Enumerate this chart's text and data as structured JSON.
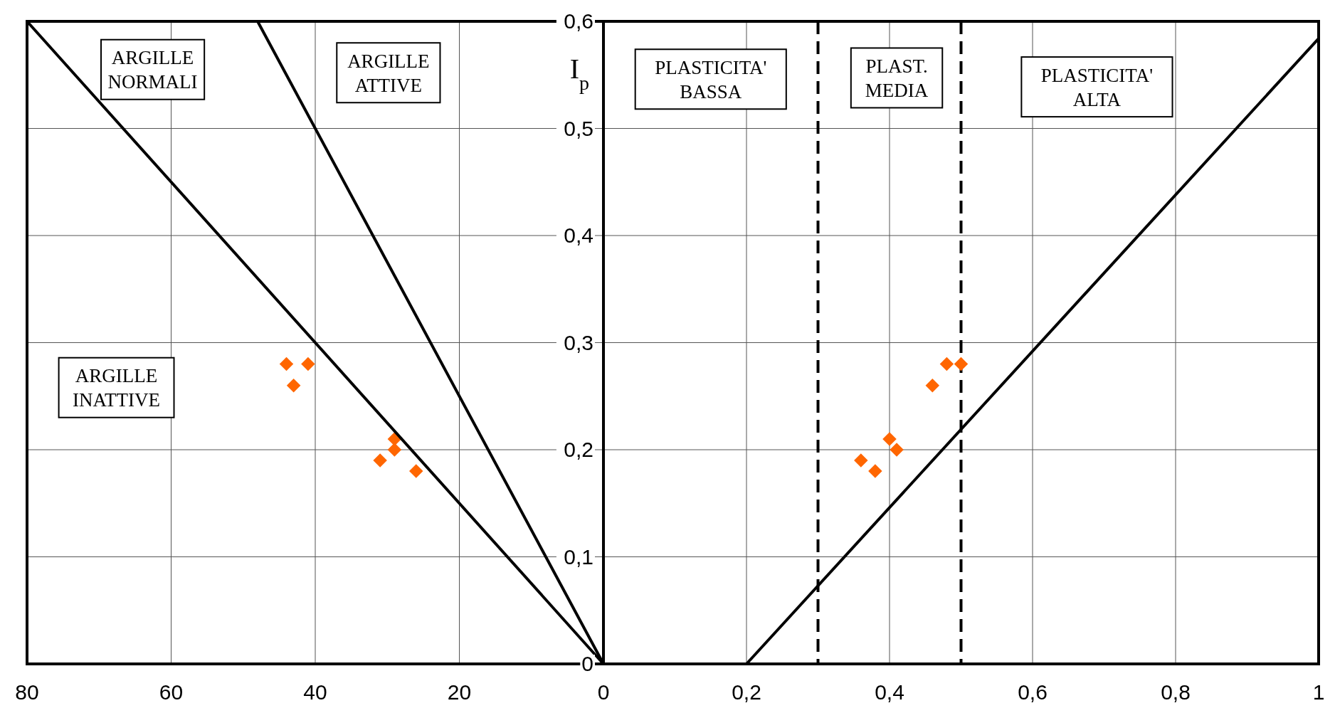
{
  "chart_data": [
    {
      "type": "scatter",
      "xlim": [
        80,
        0
      ],
      "ylim": [
        0,
        0.6
      ],
      "xticks": [
        80,
        60,
        40,
        20,
        {
          "value": 0,
          "label": null
        }
      ],
      "yticks": [
        0,
        0.1,
        0.2,
        0.3,
        0.4,
        0.5,
        0.6
      ],
      "grid": true,
      "tick_labels": "x",
      "marker": "diamond",
      "series": [
        {
          "color": "#ff6600",
          "x": [
            44,
            41,
            43,
            29,
            29,
            31,
            26
          ],
          "values": [
            0.28,
            0.28,
            0.26,
            0.21,
            0.2,
            0.19,
            0.18
          ]
        },
        {
          "type": "line",
          "marker": "none",
          "color": "#000000",
          "x": [
            0,
            80
          ],
          "values": [
            0,
            0.6
          ]
        },
        {
          "type": "line",
          "marker": "none",
          "color": "#000000",
          "x": [
            0,
            48
          ],
          "values": [
            0,
            0.6
          ]
        }
      ],
      "annotations": [
        "ARGILLE\nNORMALI",
        "ARGILLE\nATTIVE",
        "ARGILLE\nINATTIVE"
      ]
    },
    {
      "type": "scatter",
      "xlim": [
        0,
        1
      ],
      "ylim": [
        0,
        0.6
      ],
      "xticks": [
        0,
        {
          "value": 0.2,
          "label": "0,2"
        },
        {
          "value": 0.4,
          "label": "0,4"
        },
        {
          "value": 0.6,
          "label": "0,6"
        },
        {
          "value": 0.8,
          "label": "0,8"
        },
        1
      ],
      "yticks": [
        0,
        {
          "value": 0.1,
          "label": "0,1"
        },
        {
          "value": 0.2,
          "label": "0,2"
        },
        {
          "value": 0.3,
          "label": "0,3"
        },
        {
          "value": 0.4,
          "label": "0,4"
        },
        {
          "value": 0.5,
          "label": "0,5"
        },
        {
          "value": 0.6,
          "label": "0,6"
        }
      ],
      "grid": true,
      "marker": "diamond",
      "ylabel": "I$_{p}$",
      "series": [
        {
          "color": "#ff6600",
          "x": [
            0.36,
            0.38,
            0.4,
            0.41,
            0.46,
            0.48,
            0.5
          ],
          "values": [
            0.19,
            0.18,
            0.21,
            0.2,
            0.26,
            0.28,
            0.28
          ]
        },
        {
          "type": "line",
          "marker": "none",
          "color": "#000000",
          "x": [
            0.2,
            1
          ],
          "values": [
            0,
            0.584
          ]
        }
      ],
      "ref_lines": [
        {
          "axis": "x",
          "value": 0.3,
          "line_style": "dashed",
          "color": "#000000"
        },
        {
          "axis": "x",
          "value": 0.5,
          "line_style": "dashed",
          "color": "#000000"
        }
      ],
      "annotations": [
        "PLASTICITA'\nBASSA",
        "PLAST.\nMEDIA",
        "PLASTICITA'\nALTA"
      ]
    }
  ]
}
